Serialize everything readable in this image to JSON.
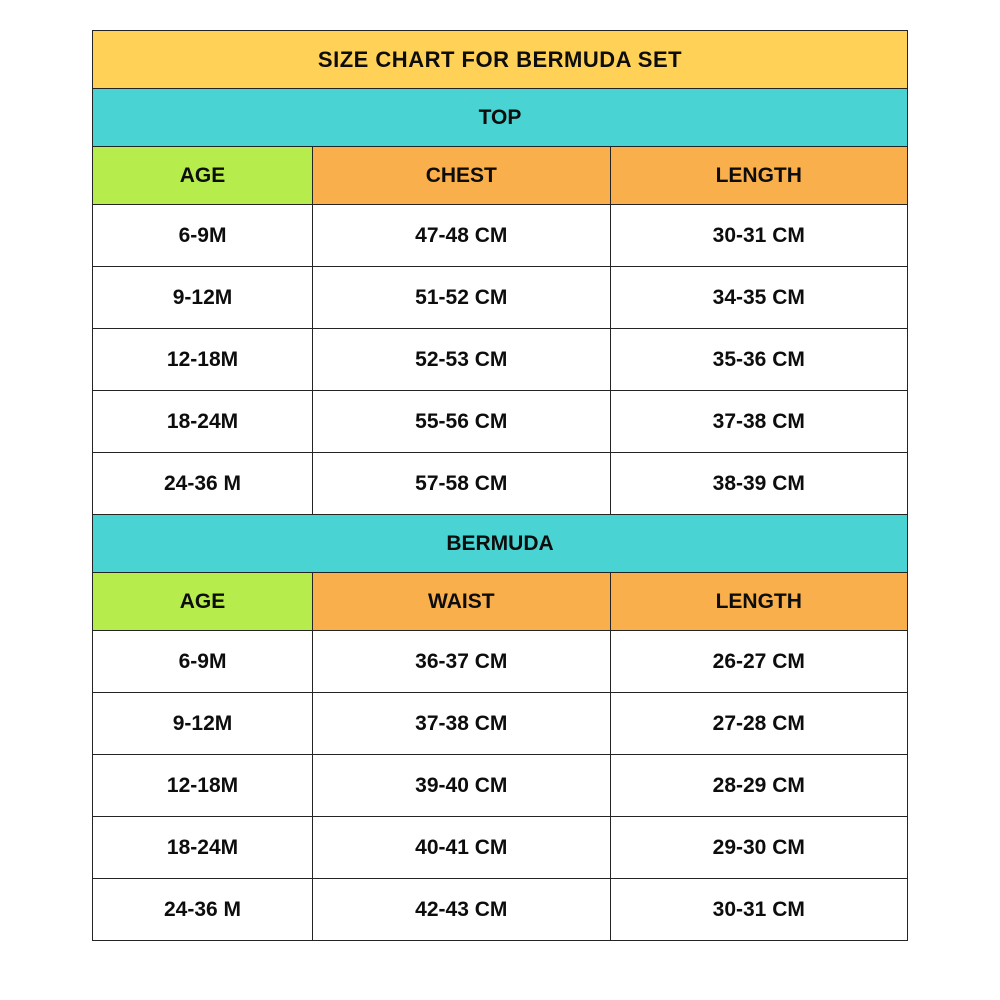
{
  "title": "SIZE CHART FOR BERMUDA SET",
  "colors": {
    "title_bg": "#ffd257",
    "section_bg": "#49d3d2",
    "age_header_bg": "#b6ec4c",
    "meas_header_bg": "#f9af4c",
    "row_bg": "#ffffff",
    "border": "#242424",
    "text": "#0d0d0d",
    "page_bg": "#ffffff"
  },
  "font": {
    "family": "Arial",
    "title_size_pt": 17,
    "body_size_pt": 16,
    "weight": "700"
  },
  "column_widths_pct": [
    27,
    36.5,
    36.5
  ],
  "sections": [
    {
      "name": "TOP",
      "columns": [
        "AGE",
        "CHEST",
        "LENGTH"
      ],
      "rows": [
        [
          "6-9M",
          "47-48 CM",
          "30-31 CM"
        ],
        [
          "9-12M",
          "51-52 CM",
          "34-35 CM"
        ],
        [
          "12-18M",
          "52-53 CM",
          "35-36 CM"
        ],
        [
          "18-24M",
          "55-56 CM",
          "37-38 CM"
        ],
        [
          "24-36 M",
          "57-58 CM",
          "38-39 CM"
        ]
      ]
    },
    {
      "name": "BERMUDA",
      "columns": [
        "AGE",
        "WAIST",
        "LENGTH"
      ],
      "rows": [
        [
          "6-9M",
          "36-37 CM",
          "26-27 CM"
        ],
        [
          "9-12M",
          "37-38 CM",
          "27-28 CM"
        ],
        [
          "12-18M",
          "39-40 CM",
          "28-29 CM"
        ],
        [
          "18-24M",
          "40-41 CM",
          "29-30 CM"
        ],
        [
          "24-36 M",
          "42-43 CM",
          "30-31 CM"
        ]
      ]
    }
  ]
}
